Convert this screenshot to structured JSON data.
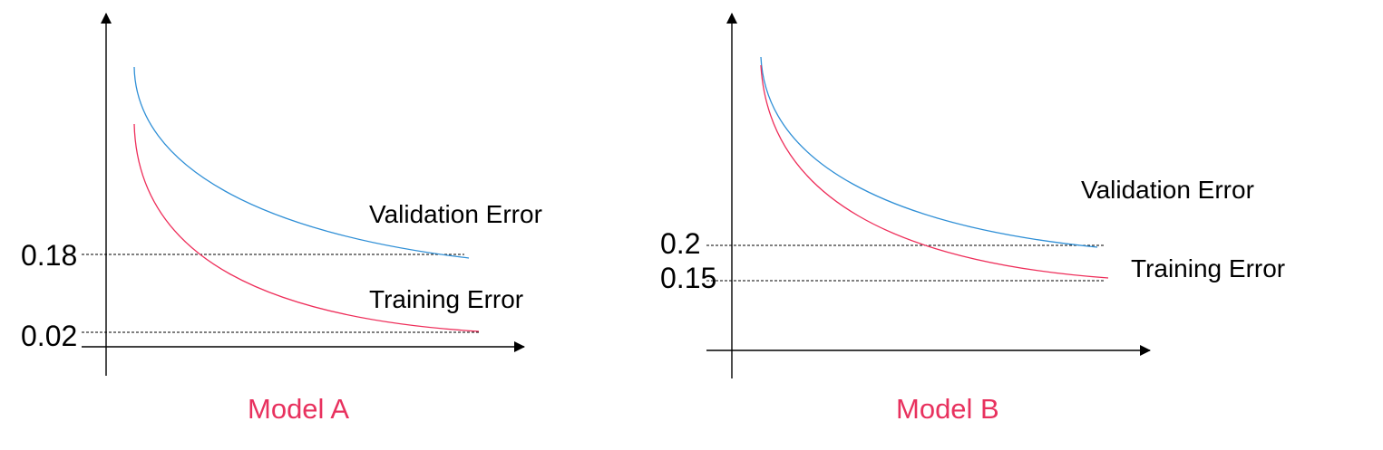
{
  "colors": {
    "validation": "#2f8fd6",
    "training": "#ee2e5a",
    "title": "#e8315e"
  },
  "chart_data": [
    {
      "type": "line",
      "title": "Model A",
      "xlabel": "",
      "ylabel": "",
      "reference_ticks": [
        "0.18",
        "0.02"
      ],
      "series": [
        {
          "name": "Validation Error",
          "end_value": 0.18
        },
        {
          "name": "Training Error",
          "end_value": 0.02
        }
      ],
      "grid": false
    },
    {
      "type": "line",
      "title": "Model B",
      "xlabel": "",
      "ylabel": "",
      "reference_ticks": [
        "0.2",
        "0.15"
      ],
      "series": [
        {
          "name": "Validation Error",
          "end_value": 0.2
        },
        {
          "name": "Training Error",
          "end_value": 0.15
        }
      ],
      "grid": false
    }
  ]
}
